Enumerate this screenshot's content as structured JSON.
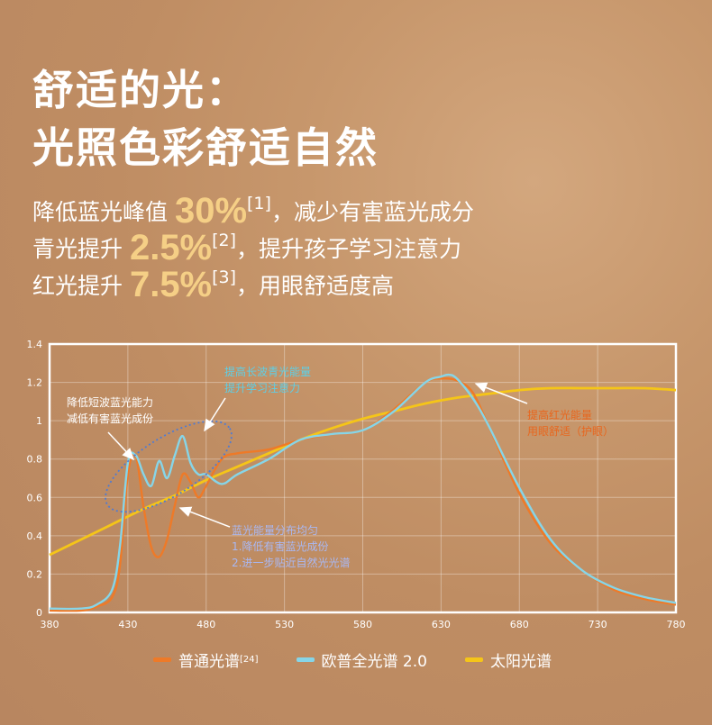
{
  "title": {
    "line1": "舒适的光：",
    "line2": "光照色彩舒适自然"
  },
  "claims": [
    {
      "pre": "降低蓝光峰值 ",
      "value": "30%",
      "ref": "[1]",
      "post": "，减少有害蓝光成分"
    },
    {
      "pre": "青光提升 ",
      "value": "2.5%",
      "ref": "[2]",
      "post": "，提升孩子学习注意力"
    },
    {
      "pre": "红光提升 ",
      "value": "7.5%",
      "ref": "[3]",
      "post": "，用眼舒适度高"
    }
  ],
  "colors": {
    "ordinary": "#ee7a28",
    "oupu": "#86d5e8",
    "sun": "#f5c518",
    "annotation_blue": "#5ecfe6",
    "annotation_orange": "#e8661d",
    "annotation_purple": "#a9b8f3"
  },
  "chart_data": {
    "type": "line",
    "xlabel": "",
    "ylabel": "",
    "xlim": [
      380,
      780
    ],
    "ylim": [
      0,
      1.4
    ],
    "x_ticks": [
      "380",
      "430",
      "480",
      "530",
      "580",
      "630",
      "680",
      "730",
      "780"
    ],
    "y_ticks": [
      "0",
      "0.2",
      "0.4",
      "0.6",
      "0.8",
      "1",
      "1.2",
      "1.4"
    ],
    "grid": true,
    "series": [
      {
        "name": "普通光谱",
        "ref": "[24]",
        "color": "#ee7a28",
        "x": [
          380,
          400,
          410,
          420,
          425,
          430,
          435,
          440,
          445,
          450,
          455,
          460,
          465,
          470,
          475,
          480,
          490,
          500,
          520,
          540,
          560,
          580,
          600,
          620,
          630,
          640,
          650,
          660,
          680,
          700,
          720,
          740,
          760,
          780
        ],
        "y": [
          0.01,
          0.01,
          0.03,
          0.08,
          0.25,
          0.72,
          0.82,
          0.55,
          0.34,
          0.29,
          0.38,
          0.56,
          0.72,
          0.68,
          0.6,
          0.66,
          0.8,
          0.83,
          0.85,
          0.9,
          0.93,
          0.95,
          1.06,
          1.2,
          1.22,
          1.21,
          1.15,
          0.98,
          0.62,
          0.36,
          0.22,
          0.12,
          0.07,
          0.04
        ]
      },
      {
        "name": "欧普全光谱 2.0",
        "color": "#86d5e8",
        "x": [
          380,
          400,
          410,
          420,
          425,
          430,
          435,
          440,
          445,
          450,
          455,
          460,
          465,
          470,
          475,
          480,
          490,
          500,
          520,
          540,
          560,
          580,
          600,
          620,
          630,
          635,
          640,
          650,
          660,
          680,
          700,
          720,
          740,
          760,
          780
        ],
        "y": [
          0.02,
          0.02,
          0.04,
          0.12,
          0.35,
          0.78,
          0.82,
          0.72,
          0.66,
          0.79,
          0.7,
          0.82,
          0.92,
          0.78,
          0.72,
          0.72,
          0.67,
          0.72,
          0.8,
          0.9,
          0.93,
          0.95,
          1.05,
          1.2,
          1.23,
          1.24,
          1.22,
          1.12,
          0.98,
          0.65,
          0.38,
          0.22,
          0.13,
          0.08,
          0.05
        ]
      },
      {
        "name": "太阳光谱",
        "color": "#f5c518",
        "x": [
          380,
          400,
          420,
          440,
          460,
          480,
          500,
          520,
          540,
          560,
          580,
          600,
          620,
          640,
          660,
          680,
          700,
          720,
          740,
          760,
          780
        ],
        "y": [
          0.3,
          0.38,
          0.46,
          0.54,
          0.61,
          0.69,
          0.76,
          0.83,
          0.9,
          0.96,
          1.01,
          1.05,
          1.09,
          1.12,
          1.14,
          1.16,
          1.17,
          1.17,
          1.17,
          1.17,
          1.16
        ]
      }
    ],
    "annotations": {
      "short_wave": [
        "降低短波蓝光能力",
        "减低有害蓝光成份"
      ],
      "long_wave": [
        "提高长波青光能量",
        "提升学习注意力"
      ],
      "red": [
        "提高红光能量",
        "用眼舒适（护眼）"
      ],
      "even": [
        "蓝光能量分布均匀",
        "1.降低有害蓝光成份",
        "2.进一步贴近自然光光谱"
      ]
    }
  }
}
